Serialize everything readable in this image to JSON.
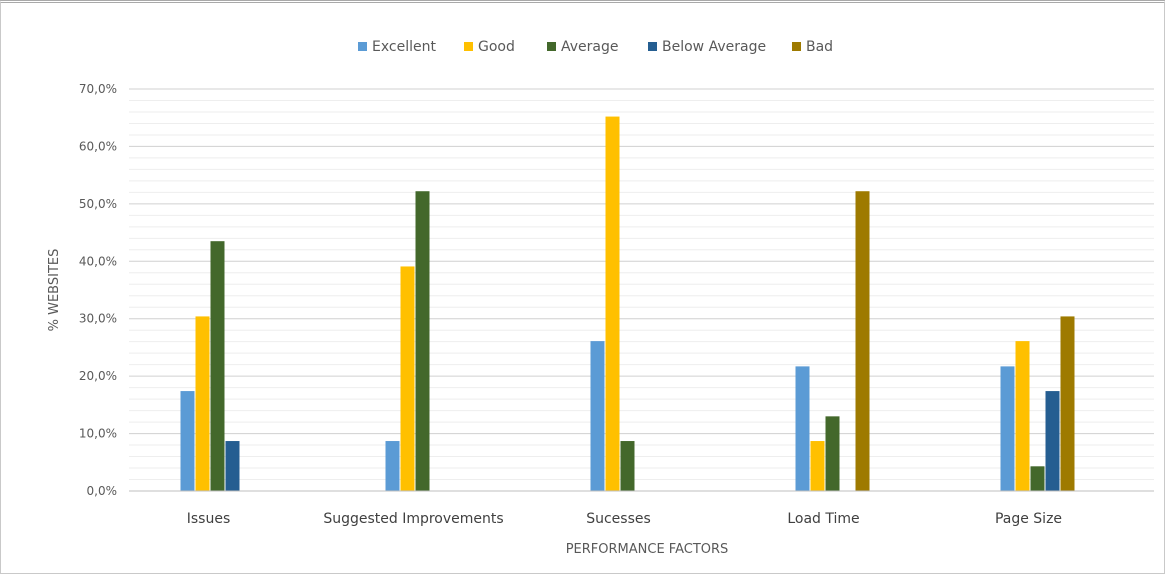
{
  "chart_data": {
    "type": "bar",
    "title": "",
    "xlabel": "PERFORMANCE FACTORS",
    "ylabel": "% WEBSITES",
    "ylim": [
      0,
      70
    ],
    "y_tick_step": 10,
    "y_tick_labels": [
      "0,0%",
      "10,0%",
      "20,0%",
      "30,0%",
      "40,0%",
      "50,0%",
      "60,0%",
      "70,0%"
    ],
    "grid": true,
    "legend_position": "top",
    "categories": [
      "Issues",
      "Suggested Improvements",
      "Sucesses",
      "Load Time",
      "Page Size"
    ],
    "series": [
      {
        "name": "Excellent",
        "color": "#5b9bd5",
        "values": [
          17.4,
          8.7,
          26.1,
          21.7,
          21.7
        ]
      },
      {
        "name": "Good",
        "color": "#ffc000",
        "values": [
          30.4,
          39.1,
          65.2,
          8.7,
          26.1
        ]
      },
      {
        "name": "Average",
        "color": "#43682b",
        "values": [
          43.5,
          52.2,
          8.7,
          13.0,
          4.3
        ]
      },
      {
        "name": "Below Average",
        "color": "#255e91",
        "values": [
          8.7,
          0,
          0,
          0,
          17.4
        ]
      },
      {
        "name": "Bad",
        "color": "#9e7a00",
        "values": [
          0,
          0,
          0,
          52.2,
          30.4
        ]
      }
    ]
  }
}
